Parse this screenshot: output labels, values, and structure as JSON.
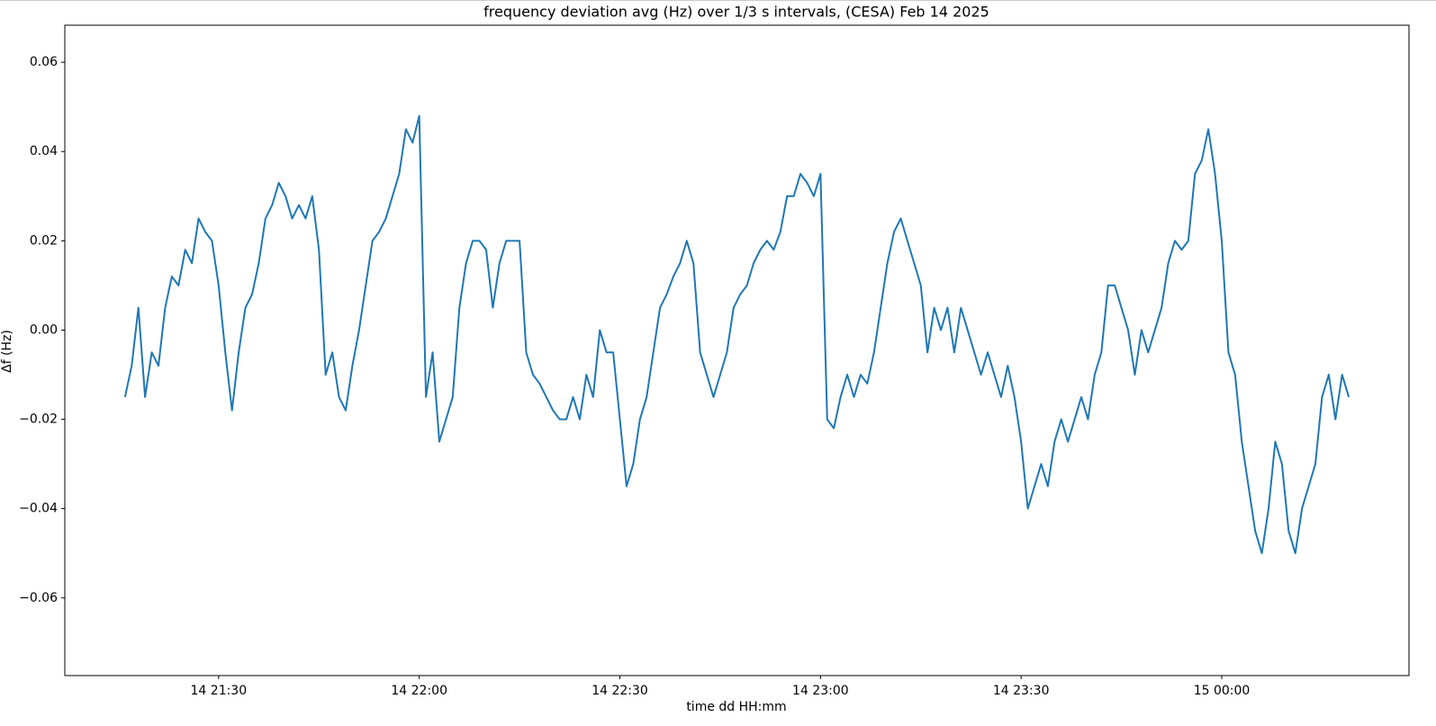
{
  "chart_data": {
    "type": "line",
    "title": "frequency deviation avg (Hz) over 1/3 s intervals, (CESA) Feb 14 2025",
    "xlabel": "time dd HH:mm",
    "ylabel": "Δf (Hz)",
    "color": "#1f77b4",
    "xlim": [
      "14 21:07",
      "15 00:28"
    ],
    "xticks": [
      "14 21:30",
      "14 22:00",
      "14 22:30",
      "14 23:00",
      "14 23:30",
      "15 00:00"
    ],
    "ylim": [
      -0.0774,
      0.0683
    ],
    "yticks": [
      {
        "value": -0.06,
        "label": "−0.06"
      },
      {
        "value": -0.04,
        "label": "−0.04"
      },
      {
        "value": -0.02,
        "label": "−0.02"
      },
      {
        "value": 0,
        "label": "0.00"
      },
      0.02,
      0.04,
      0.06
    ],
    "x": [
      "14 21:16",
      "14 21:17",
      "14 21:18",
      "14 21:19",
      "14 21:20",
      "14 21:21",
      "14 21:22",
      "14 21:23",
      "14 21:24",
      "14 21:25",
      "14 21:26",
      "14 21:27",
      "14 21:28",
      "14 21:29",
      "14 21:30",
      "14 21:31",
      "14 21:32",
      "14 21:33",
      "14 21:34",
      "14 21:35",
      "14 21:36",
      "14 21:37",
      "14 21:38",
      "14 21:39",
      "14 21:40",
      "14 21:41",
      "14 21:42",
      "14 21:43",
      "14 21:44",
      "14 21:45",
      "14 21:46",
      "14 21:47",
      "14 21:48",
      "14 21:49",
      "14 21:50",
      "14 21:51",
      "14 21:52",
      "14 21:53",
      "14 21:54",
      "14 21:55",
      "14 21:56",
      "14 21:57",
      "14 21:58",
      "14 21:59",
      "14 22:00",
      "14 22:01",
      "14 22:02",
      "14 22:03",
      "14 22:04",
      "14 22:05",
      "14 22:06",
      "14 22:07",
      "14 22:08",
      "14 22:09",
      "14 22:10",
      "14 22:11",
      "14 22:12",
      "14 22:13",
      "14 22:14",
      "14 22:15",
      "14 22:16",
      "14 22:17",
      "14 22:18",
      "14 22:19",
      "14 22:20",
      "14 22:21",
      "14 22:22",
      "14 22:23",
      "14 22:24",
      "14 22:25",
      "14 22:26",
      "14 22:27",
      "14 22:28",
      "14 22:29",
      "14 22:30",
      "14 22:31",
      "14 22:32",
      "14 22:33",
      "14 22:34",
      "14 22:35",
      "14 22:36",
      "14 22:37",
      "14 22:38",
      "14 22:39",
      "14 22:40",
      "14 22:41",
      "14 22:42",
      "14 22:43",
      "14 22:44",
      "14 22:45",
      "14 22:46",
      "14 22:47",
      "14 22:48",
      "14 22:49",
      "14 22:50",
      "14 22:51",
      "14 22:52",
      "14 22:53",
      "14 22:54",
      "14 22:55",
      "14 22:56",
      "14 22:57",
      "14 22:58",
      "14 22:59",
      "14 23:00",
      "14 23:01",
      "14 23:02",
      "14 23:03",
      "14 23:04",
      "14 23:05",
      "14 23:06",
      "14 23:07",
      "14 23:08",
      "14 23:09",
      "14 23:10",
      "14 23:11",
      "14 23:12",
      "14 23:13",
      "14 23:14",
      "14 23:15",
      "14 23:16",
      "14 23:17",
      "14 23:18",
      "14 23:19",
      "14 23:20",
      "14 23:21",
      "14 23:22",
      "14 23:23",
      "14 23:24",
      "14 23:25",
      "14 23:26",
      "14 23:27",
      "14 23:28",
      "14 23:29",
      "14 23:30",
      "14 23:31",
      "14 23:32",
      "14 23:33",
      "14 23:34",
      "14 23:35",
      "14 23:36",
      "14 23:37",
      "14 23:38",
      "14 23:39",
      "14 23:40",
      "14 23:41",
      "14 23:42",
      "14 23:43",
      "14 23:44",
      "14 23:45",
      "14 23:46",
      "14 23:47",
      "14 23:48",
      "14 23:49",
      "14 23:50",
      "14 23:51",
      "14 23:52",
      "14 23:53",
      "14 23:54",
      "14 23:55",
      "14 23:56",
      "14 23:57",
      "14 23:58",
      "14 23:59",
      "15 00:00",
      "15 00:01",
      "15 00:02",
      "15 00:03",
      "15 00:04",
      "15 00:05",
      "15 00:06",
      "15 00:07",
      "15 00:08",
      "15 00:09",
      "15 00:10",
      "15 00:11",
      "15 00:12",
      "15 00:13",
      "15 00:14",
      "15 00:15",
      "15 00:16",
      "15 00:17",
      "15 00:18",
      "15 00:19"
    ],
    "values": [
      -0.015,
      -0.008,
      0.005,
      -0.015,
      -0.005,
      -0.008,
      0.005,
      0.012,
      0.01,
      0.018,
      0.015,
      0.025,
      0.022,
      0.02,
      0.01,
      -0.005,
      -0.018,
      -0.005,
      0.005,
      0.008,
      0.015,
      0.025,
      0.028,
      0.033,
      0.03,
      0.025,
      0.028,
      0.025,
      0.03,
      0.018,
      -0.01,
      -0.005,
      -0.015,
      -0.018,
      -0.008,
      0.0,
      0.01,
      0.02,
      0.022,
      0.025,
      0.03,
      0.035,
      0.045,
      0.042,
      0.048,
      -0.015,
      -0.005,
      -0.025,
      -0.02,
      -0.015,
      0.005,
      0.015,
      0.02,
      0.02,
      0.018,
      0.005,
      0.015,
      0.02,
      0.02,
      0.02,
      -0.005,
      -0.01,
      -0.012,
      -0.015,
      -0.018,
      -0.02,
      -0.02,
      -0.015,
      -0.02,
      -0.01,
      -0.015,
      0.0,
      -0.005,
      -0.005,
      -0.02,
      -0.035,
      -0.03,
      -0.02,
      -0.015,
      -0.005,
      0.005,
      0.008,
      0.012,
      0.015,
      0.02,
      0.015,
      -0.005,
      -0.01,
      -0.015,
      -0.01,
      -0.005,
      0.005,
      0.008,
      0.01,
      0.015,
      0.018,
      0.02,
      0.018,
      0.022,
      0.03,
      0.03,
      0.035,
      0.033,
      0.03,
      0.035,
      -0.02,
      -0.022,
      -0.015,
      -0.01,
      -0.015,
      -0.01,
      -0.012,
      -0.005,
      0.005,
      0.015,
      0.022,
      0.025,
      0.02,
      0.015,
      0.01,
      -0.005,
      0.005,
      0.0,
      0.005,
      -0.005,
      0.005,
      0.0,
      -0.005,
      -0.01,
      -0.005,
      -0.01,
      -0.015,
      -0.008,
      -0.015,
      -0.025,
      -0.04,
      -0.035,
      -0.03,
      -0.035,
      -0.025,
      -0.02,
      -0.025,
      -0.02,
      -0.015,
      -0.02,
      -0.01,
      -0.005,
      0.01,
      0.01,
      0.005,
      0.0,
      -0.01,
      0.0,
      -0.005,
      0.0,
      0.005,
      0.015,
      0.02,
      0.018,
      0.02,
      0.035,
      0.038,
      0.045,
      0.035,
      0.02,
      -0.005,
      -0.01,
      -0.025,
      -0.035,
      -0.045,
      -0.05,
      -0.04,
      -0.025,
      -0.03,
      -0.045,
      -0.05,
      -0.04,
      -0.035,
      -0.03,
      -0.015,
      -0.01,
      -0.02,
      -0.01,
      -0.015
    ]
  }
}
